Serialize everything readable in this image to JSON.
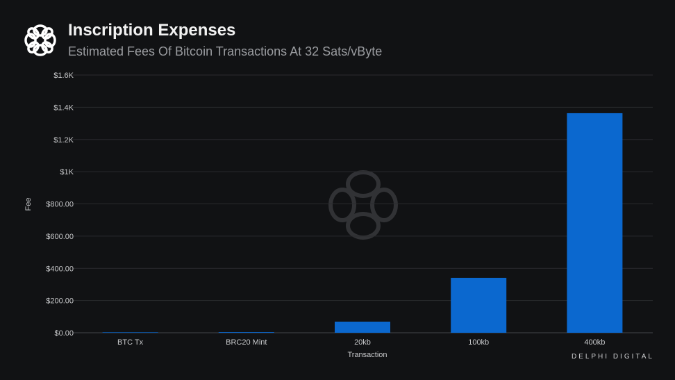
{
  "header": {
    "title": "Inscription Expenses",
    "subtitle": "Estimated Fees Of Bitcoin Transactions At 32 Sats/vByte"
  },
  "brand": "DELPHI DIGITAL",
  "colors": {
    "bar": "#0b68cf",
    "grid": "#2a2b2e",
    "background": "#111214"
  },
  "chart_data": {
    "type": "bar",
    "title": "Inscription Expenses",
    "xlabel": "Transaction",
    "ylabel": "Fee",
    "categories": [
      "BTC Tx",
      "BRC20 Mint",
      "20kb",
      "100kb",
      "400kb"
    ],
    "values": [
      3,
      4,
      69,
      341,
      1363
    ],
    "ylim": [
      0,
      1600
    ],
    "yticks": [
      0,
      200,
      400,
      600,
      800,
      1000,
      1200,
      1400,
      1600
    ],
    "ytick_labels": [
      "$0.00",
      "$200.00",
      "$400.00",
      "$600.00",
      "$800.00",
      "$1K",
      "$1.2K",
      "$1.4K",
      "$1.6K"
    ],
    "grid": true
  }
}
